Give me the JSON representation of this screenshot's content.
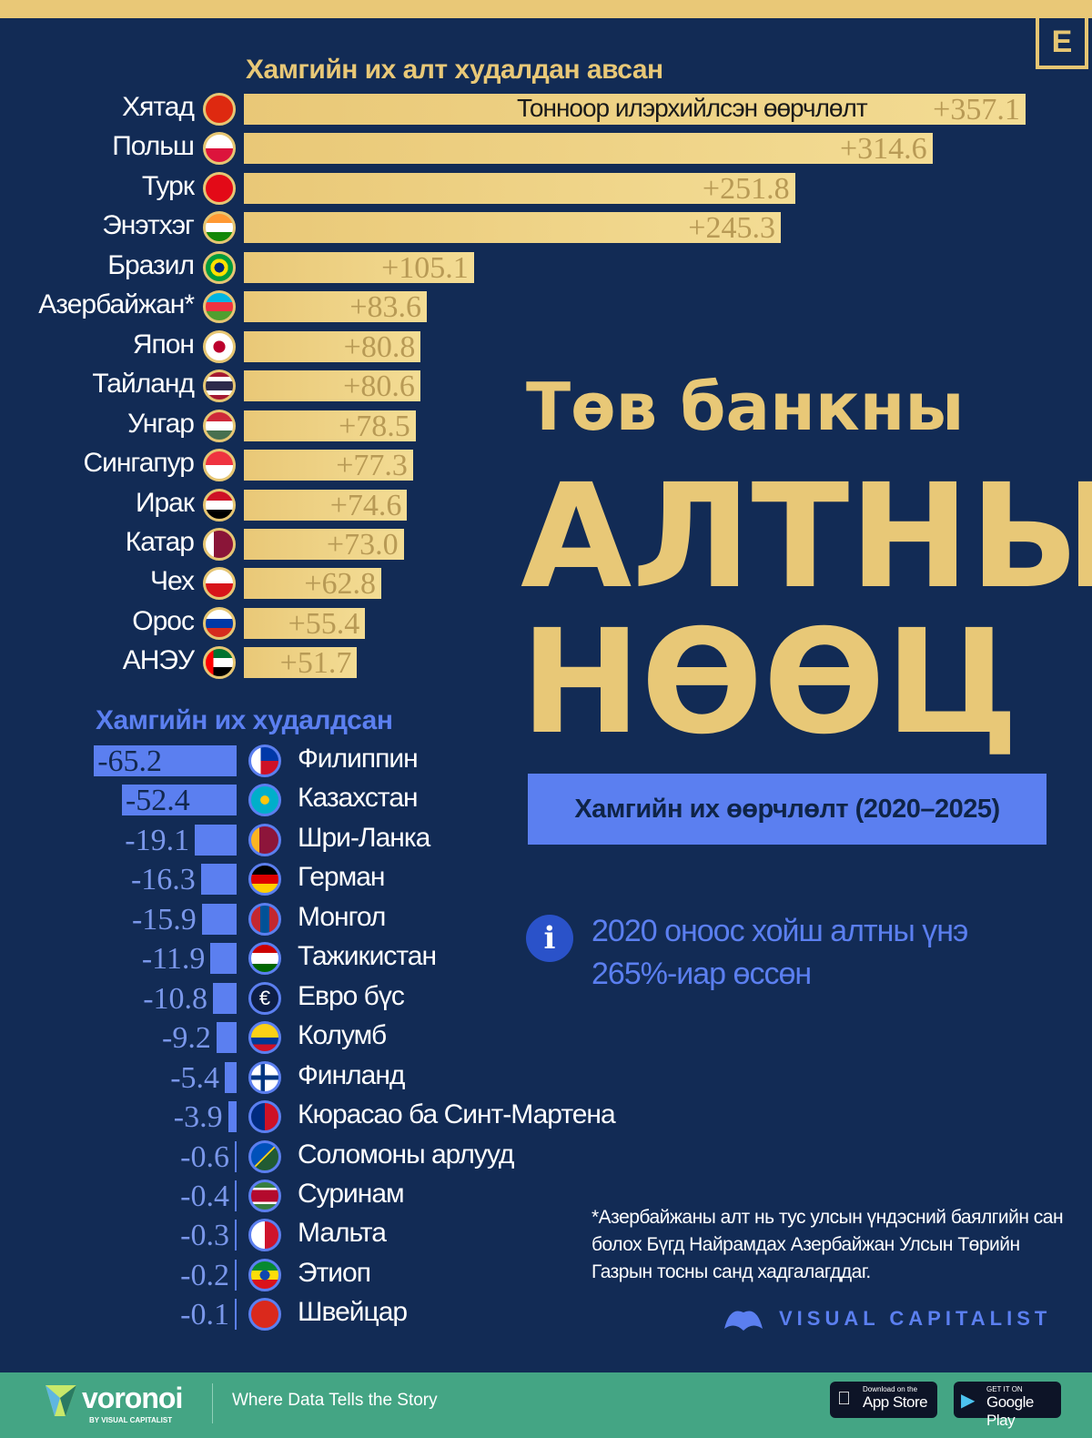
{
  "brand_logo": "E",
  "title": {
    "line1": "Төв банкны",
    "line2": "АЛТНЫ",
    "line3": "НӨӨЦ"
  },
  "subtitle": "Хамгийн их өөрчлөлт (2020–2025)",
  "info": {
    "icon": "info-icon",
    "line1": "2020 оноос хойш алтны үнэ",
    "line2": "265%-иар өссөн"
  },
  "footnote": "*Азербайжаны алт нь тус улсын үндэсний баялгийн сан болох Бүгд Найрамдах Азербайжан Улсын Төрийн Газрын тосны санд хадгалагддаг.",
  "visual_capitalist": "VISUAL CAPITALIST",
  "footer": {
    "brand": "voronoi",
    "brand_sub": "BY VISUAL CAPITALIST",
    "tagline": "Where Data Tells the Story",
    "appstore_small": "Download on the",
    "appstore": "App Store",
    "gplay_small": "GET IT ON",
    "gplay": "Google Play"
  },
  "colors": {
    "gold": "#e8c877",
    "blue": "#5b7ff0",
    "background": "#122b55",
    "footer": "#44a584"
  },
  "chart_data": [
    {
      "type": "bar",
      "title": "Хамгийн их алт худалдан авсан",
      "annotation": "Тонноор илэрхийлсэн өөрчлөлт",
      "unit": "tonnes",
      "categories": [
        "Хятад",
        "Польш",
        "Турк",
        "Энэтхэг",
        "Бразил",
        "Азербайжан*",
        "Япон",
        "Тайланд",
        "Унгар",
        "Сингапур",
        "Ирак",
        "Катар",
        "Чех",
        "Орос",
        "АНЭУ"
      ],
      "flags": [
        "cn",
        "pl",
        "tr",
        "in",
        "br",
        "az",
        "jp",
        "th",
        "hu",
        "sg",
        "iq",
        "qa",
        "cz",
        "ru",
        "ae"
      ],
      "values": [
        357.1,
        314.6,
        251.8,
        245.3,
        105.1,
        83.6,
        80.8,
        80.6,
        78.5,
        77.3,
        74.6,
        73.0,
        62.8,
        55.4,
        51.7
      ],
      "labels": [
        "+357.1",
        "+314.6",
        "+251.8",
        "+245.3",
        "+105.1",
        "+83.6",
        "+80.8",
        "+80.6",
        "+78.5",
        "+77.3",
        "+74.6",
        "+73.0",
        "+62.8",
        "+55.4",
        "+51.7"
      ]
    },
    {
      "type": "bar",
      "title": "Хамгийн их худалдсан",
      "unit": "tonnes",
      "categories": [
        "Филиппин",
        "Казахстан",
        "Шри-Ланка",
        "Герман",
        "Монгол",
        "Тажикистан",
        "Евро бүс",
        "Колумб",
        "Финланд",
        "Кюрасао ба Синт-Мартена",
        "Соломоны арлууд",
        "Суринам",
        "Мальта",
        "Этиоп",
        "Швейцар"
      ],
      "flags": [
        "ph",
        "kz",
        "lk",
        "de",
        "mn",
        "tj",
        "eu",
        "co",
        "fi",
        "cw",
        "sb",
        "sr",
        "mt",
        "et",
        "ch"
      ],
      "values": [
        -65.2,
        -52.4,
        -19.1,
        -16.3,
        -15.9,
        -11.9,
        -10.8,
        -9.2,
        -5.4,
        -3.9,
        -0.6,
        -0.4,
        -0.3,
        -0.2,
        -0.1
      ],
      "labels": [
        "-65.2",
        "-52.4",
        "-19.1",
        "-16.3",
        "-15.9",
        "-11.9",
        "-10.8",
        "-9.2",
        "-5.4",
        "-3.9",
        "-0.6",
        "-0.4",
        "-0.3",
        "-0.2",
        "-0.1"
      ]
    }
  ]
}
